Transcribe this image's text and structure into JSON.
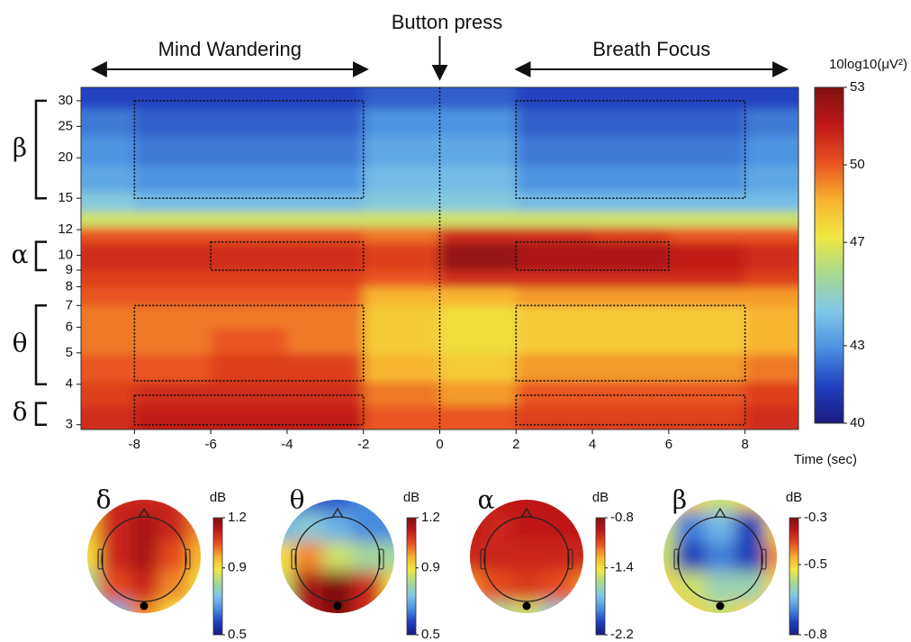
{
  "chart_data": [
    {
      "type": "heatmap",
      "x_label": "Time (sec)",
      "colorbar_label": "10log10(μV²)",
      "xlim": [
        -9.4,
        9.4
      ],
      "xticks": [
        -8,
        -6,
        -4,
        -2,
        0,
        2,
        4,
        6,
        8
      ],
      "ylim": [
        2.9,
        33
      ],
      "yscale": "log",
      "yticks": [
        3,
        4,
        5,
        6,
        7,
        8,
        9,
        10,
        12,
        15,
        20,
        25,
        30
      ],
      "clim": [
        40,
        53
      ],
      "cticks": [
        40,
        43,
        47,
        50,
        53
      ],
      "colormap": [
        "#1a1a80",
        "#2040c0",
        "#4a90e0",
        "#80c8e8",
        "#a8d890",
        "#f0e840",
        "#f8b030",
        "#e85020",
        "#c01818",
        "#801010"
      ],
      "x": [
        -9,
        -7,
        -5,
        -3,
        -1,
        1,
        3,
        5,
        7,
        9
      ],
      "y": [
        3.2,
        3.7,
        4.5,
        5.5,
        6.5,
        7.5,
        8.5,
        9.5,
        10.5,
        11.5,
        13,
        14.5,
        17,
        21,
        26,
        31
      ],
      "values": [
        [
          51,
          51.5,
          51.5,
          51.5,
          50,
          50,
          50.5,
          50.5,
          50.5,
          51
        ],
        [
          50.5,
          51,
          51,
          51,
          49.5,
          49,
          50,
          50,
          50,
          50.5
        ],
        [
          50,
          50,
          50.5,
          50.5,
          48.5,
          48,
          49,
          49,
          49,
          49.5
        ],
        [
          49.5,
          49.5,
          50,
          49.5,
          48,
          47.5,
          48,
          48,
          48,
          48.5
        ],
        [
          49.5,
          49.5,
          49.5,
          49.5,
          48,
          47.5,
          48,
          48,
          48,
          48.5
        ],
        [
          50,
          50,
          50,
          50,
          48.5,
          48.5,
          49,
          49,
          49,
          49
        ],
        [
          50.5,
          50.5,
          50.5,
          50.5,
          50,
          51,
          51,
          51,
          51,
          50.5
        ],
        [
          51,
          51,
          51,
          51,
          50.5,
          52.5,
          52,
          52,
          51.5,
          51
        ],
        [
          51,
          51,
          51,
          51,
          50.5,
          52.5,
          52,
          52,
          51.5,
          51
        ],
        [
          50,
          50,
          50,
          50,
          49.5,
          51,
          51,
          50.5,
          50,
          50
        ],
        [
          46.5,
          46.5,
          46.5,
          46.5,
          46.5,
          46.5,
          46.5,
          46.5,
          46.5,
          46.5
        ],
        [
          44.5,
          44,
          44,
          44,
          44.5,
          44.5,
          44,
          44,
          44,
          44
        ],
        [
          43.5,
          43,
          43,
          43,
          44,
          44,
          43,
          43,
          43,
          43.5
        ],
        [
          43,
          42.5,
          42.5,
          42.5,
          43.5,
          43.5,
          42.5,
          42.5,
          42.5,
          43
        ],
        [
          42.5,
          42,
          42,
          42,
          43,
          43,
          42,
          42,
          42,
          42.5
        ],
        [
          41.5,
          41.5,
          41.5,
          41.5,
          42,
          42,
          41.5,
          41.5,
          41.5,
          41.5
        ]
      ],
      "annotations": [
        {
          "text": "Mind Wandering",
          "x": [
            -9.1,
            -1.9
          ]
        },
        {
          "text": "Breath Focus",
          "x": [
            2,
            9.1
          ]
        },
        {
          "text": "Button press",
          "x": 0
        }
      ],
      "bands": [
        {
          "label": "β",
          "range": [
            15,
            30
          ]
        },
        {
          "label": "α",
          "range": [
            9,
            11
          ]
        },
        {
          "label": "θ",
          "range": [
            4,
            7
          ]
        },
        {
          "label": "δ",
          "range": [
            3,
            3.5
          ]
        }
      ],
      "boxes": [
        {
          "x": [
            -8,
            -2
          ],
          "y": [
            15,
            30
          ]
        },
        {
          "x": [
            2,
            8
          ],
          "y": [
            15,
            30
          ]
        },
        {
          "x": [
            -6,
            -2
          ],
          "y": [
            9,
            11
          ]
        },
        {
          "x": [
            2,
            6
          ],
          "y": [
            9,
            11
          ]
        },
        {
          "x": [
            -8,
            -2
          ],
          "y": [
            4.1,
            7
          ]
        },
        {
          "x": [
            2,
            8
          ],
          "y": [
            4.1,
            7
          ]
        },
        {
          "x": [
            -8,
            -2
          ],
          "y": [
            3,
            3.7
          ]
        },
        {
          "x": [
            2,
            8
          ],
          "y": [
            3,
            3.7
          ]
        }
      ]
    },
    {
      "type": "topomap",
      "title": "δ",
      "colorbar_label": "dB",
      "clim": [
        0.5,
        1.2
      ],
      "cticks": [
        0.5,
        0.9,
        1.2
      ],
      "values": [
        [
          1.0,
          1.1,
          1.1,
          1.1,
          1.0
        ],
        [
          0.95,
          1.1,
          1.15,
          1.1,
          1.0
        ],
        [
          0.9,
          1.1,
          1.15,
          1.05,
          0.95
        ],
        [
          0.8,
          1.05,
          1.1,
          1.0,
          0.9
        ],
        [
          0.6,
          0.7,
          1.0,
          0.9,
          0.85
        ]
      ]
    },
    {
      "type": "topomap",
      "title": "θ",
      "colorbar_label": "dB",
      "clim": [
        0.5,
        1.2
      ],
      "cticks": [
        0.5,
        0.9,
        1.2
      ],
      "values": [
        [
          0.6,
          0.6,
          0.6,
          0.65,
          0.7
        ],
        [
          0.7,
          0.75,
          0.7,
          0.65,
          0.65
        ],
        [
          0.9,
          1.0,
          0.85,
          0.8,
          0.8
        ],
        [
          0.85,
          1.15,
          1.2,
          1.1,
          0.9
        ],
        [
          0.7,
          1.15,
          1.2,
          1.1,
          0.9
        ]
      ]
    },
    {
      "type": "topomap",
      "title": "α",
      "colorbar_label": "dB",
      "clim": [
        -2.2,
        -0.8
      ],
      "cticks": [
        -2.2,
        -1.4,
        -0.8
      ],
      "values": [
        [
          -0.95,
          -0.95,
          -0.95,
          -0.95,
          -0.95
        ],
        [
          -0.95,
          -1.0,
          -0.95,
          -0.95,
          -0.95
        ],
        [
          -1.0,
          -1.0,
          -1.0,
          -1.0,
          -1.0
        ],
        [
          -1.2,
          -1.1,
          -1.05,
          -1.1,
          -1.2
        ],
        [
          -2.0,
          -1.6,
          -1.5,
          -1.7,
          -2.0
        ]
      ]
    },
    {
      "type": "topomap",
      "title": "β",
      "colorbar_label": "dB",
      "clim": [
        -0.8,
        -0.3
      ],
      "cticks": [
        -0.8,
        -0.5,
        -0.3
      ],
      "values": [
        [
          -0.5,
          -0.5,
          -0.55,
          -0.5,
          -0.5
        ],
        [
          -0.55,
          -0.7,
          -0.65,
          -0.75,
          -0.5
        ],
        [
          -0.55,
          -0.75,
          -0.7,
          -0.75,
          -0.45
        ],
        [
          -0.5,
          -0.55,
          -0.6,
          -0.6,
          -0.5
        ],
        [
          -0.5,
          -0.5,
          -0.55,
          -0.5,
          -0.5
        ]
      ]
    }
  ]
}
